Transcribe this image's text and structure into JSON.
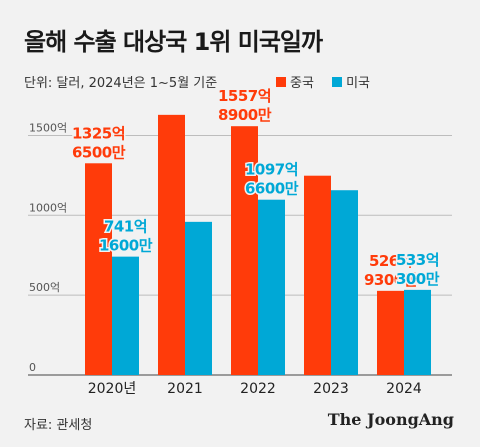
{
  "title": "올해 수출 대상국 1위 미국일까",
  "unit_note": "단위: 달러, 2024년은 1~5월 기준",
  "source": "자료: 관세청",
  "brand": "The JoongAng",
  "colors": {
    "china": "#ff3b0a",
    "usa": "#00a8d6",
    "grid": "#bdbdbd"
  },
  "chart_data": {
    "type": "bar",
    "categories": [
      "2020년",
      "2021",
      "2022",
      "2023",
      "2024"
    ],
    "series": [
      {
        "name": "중국",
        "values": [
          1325.65,
          1629,
          1557.89,
          1248,
          526.93
        ]
      },
      {
        "name": "미국",
        "values": [
          741.16,
          959,
          1097.66,
          1157,
          533.03
        ]
      }
    ],
    "ylim": [
      0,
      1800
    ],
    "yticks": [
      0,
      500,
      1000,
      1500
    ],
    "ytick_labels": [
      "0",
      "500억",
      "1000억",
      "1500억"
    ],
    "data_labels": [
      {
        "series": 0,
        "index": 0,
        "lines": [
          "1325억",
          "6500만"
        ]
      },
      {
        "series": 1,
        "index": 0,
        "lines": [
          "741억",
          "1600만"
        ]
      },
      {
        "series": 0,
        "index": 2,
        "lines": [
          "1557억",
          "8900만"
        ]
      },
      {
        "series": 1,
        "index": 2,
        "lines": [
          "1097억",
          "6600만"
        ]
      },
      {
        "series": 0,
        "index": 4,
        "lines": [
          "526억",
          "9300만"
        ]
      },
      {
        "series": 1,
        "index": 4,
        "lines": [
          "533억",
          "300만"
        ]
      }
    ],
    "grid": true,
    "legend_position": "top-right"
  }
}
